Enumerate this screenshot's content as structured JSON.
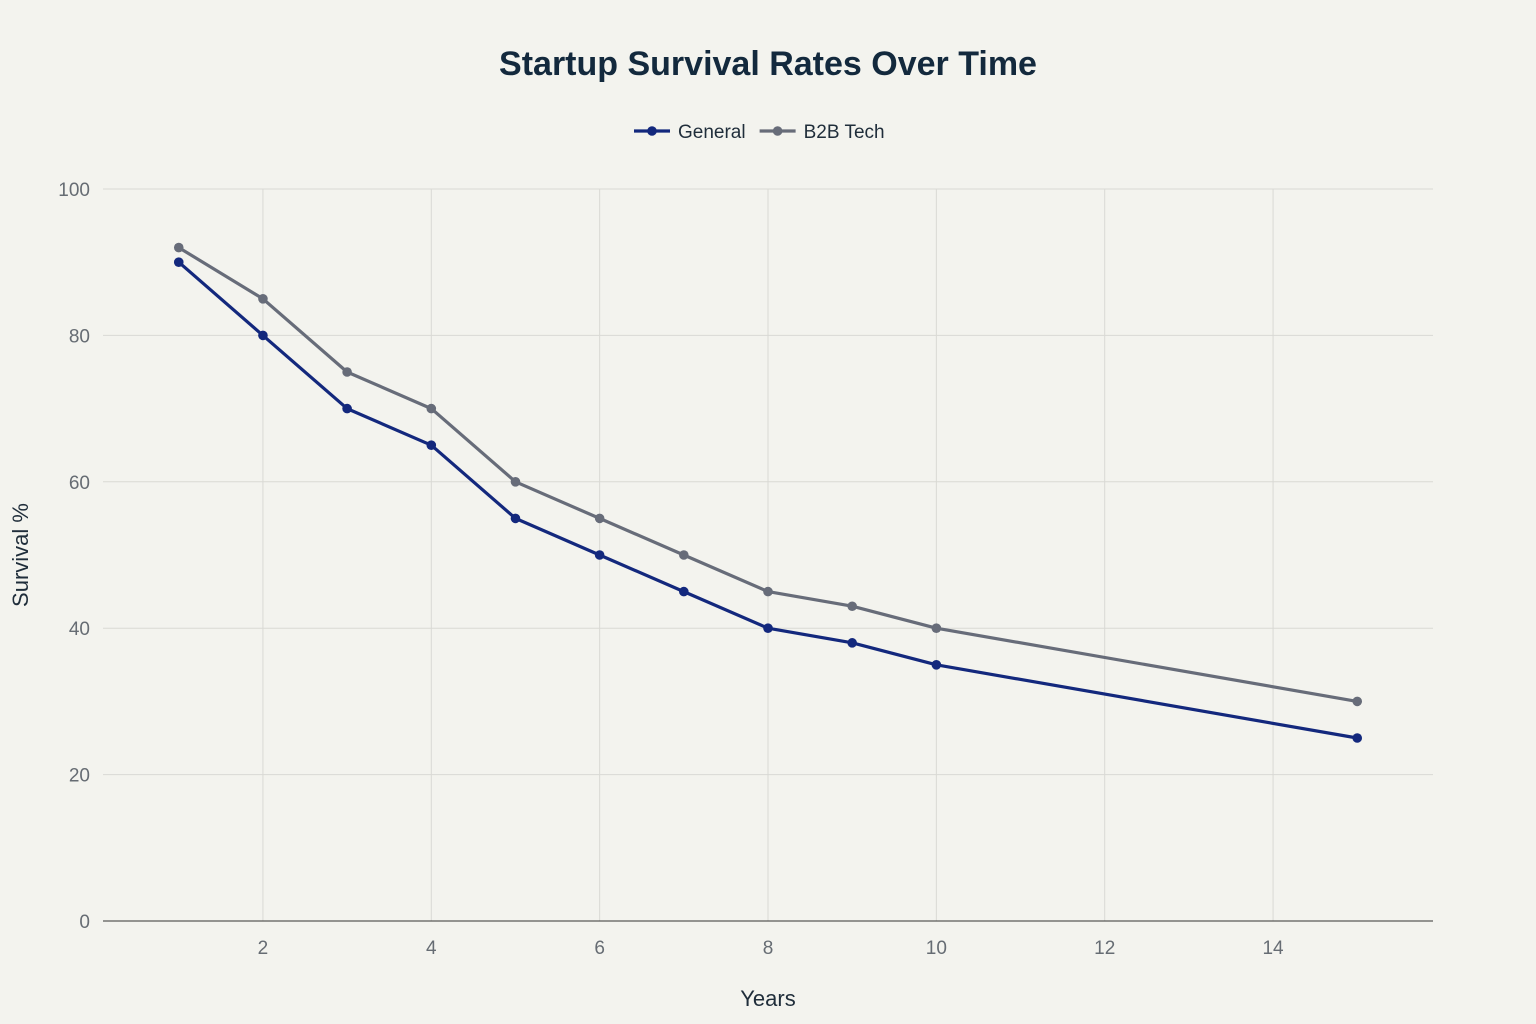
{
  "chart_data": {
    "type": "line",
    "title": "Startup Survival Rates Over Time",
    "xlabel": "Years",
    "ylabel": "Survival %",
    "xlim": [
      0.1,
      15.9
    ],
    "ylim": [
      0,
      100
    ],
    "x_ticks": [
      2,
      4,
      6,
      8,
      10,
      12,
      14
    ],
    "y_ticks": [
      0,
      20,
      40,
      60,
      80,
      100
    ],
    "grid": true,
    "legend_position": "top-center",
    "series": [
      {
        "name": "General",
        "color": "#13287d",
        "points": [
          [
            1,
            90
          ],
          [
            2,
            80
          ],
          [
            3,
            70
          ],
          [
            4,
            65
          ],
          [
            5,
            55
          ],
          [
            6,
            50
          ],
          [
            7,
            45
          ],
          [
            8,
            40
          ],
          [
            9,
            38
          ],
          [
            10,
            35
          ],
          [
            15,
            25
          ]
        ]
      },
      {
        "name": "B2B Tech",
        "color": "#676c79",
        "points": [
          [
            1,
            92
          ],
          [
            2,
            85
          ],
          [
            3,
            75
          ],
          [
            4,
            70
          ],
          [
            5,
            60
          ],
          [
            6,
            55
          ],
          [
            7,
            50
          ],
          [
            8,
            45
          ],
          [
            9,
            43
          ],
          [
            10,
            40
          ],
          [
            15,
            30
          ]
        ]
      }
    ]
  }
}
